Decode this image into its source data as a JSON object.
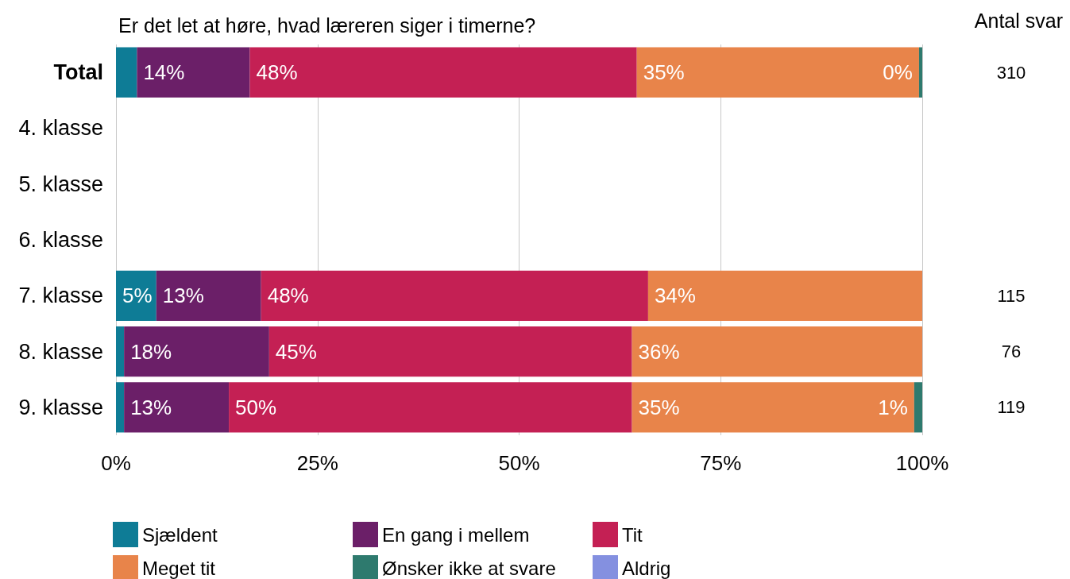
{
  "chart_data": {
    "type": "bar",
    "orientation": "horizontal",
    "stacked": true,
    "title": "Er det let at høre, hvad læreren siger i timerne?",
    "categories": [
      "Total",
      "4. klasse",
      "5. klasse",
      "6. klasse",
      "7. klasse",
      "8. klasse",
      "9. klasse"
    ],
    "series": [
      {
        "name": "Sjældent",
        "color": "#0e7c96",
        "values": [
          2.6,
          null,
          null,
          null,
          5,
          1,
          1
        ],
        "value_labels": [
          null,
          null,
          null,
          null,
          "5%",
          null,
          null
        ]
      },
      {
        "name": "En gang i mellem",
        "color": "#6b1f68",
        "values": [
          14,
          null,
          null,
          null,
          13,
          18,
          13
        ],
        "value_labels": [
          "14%",
          null,
          null,
          null,
          "13%",
          "18%",
          "13%"
        ]
      },
      {
        "name": "Tit",
        "color": "#c42054",
        "values": [
          48,
          null,
          null,
          null,
          48,
          45,
          50
        ],
        "value_labels": [
          "48%",
          null,
          null,
          null,
          "48%",
          "45%",
          "50%"
        ]
      },
      {
        "name": "Meget tit",
        "color": "#e8844a",
        "values": [
          35,
          null,
          null,
          null,
          34,
          36,
          35
        ],
        "value_labels": [
          "35%",
          null,
          null,
          null,
          "34%",
          "36%",
          "35%"
        ]
      },
      {
        "name": "Ønsker ikke at svare",
        "color": "#2e7a6e",
        "values": [
          0.4,
          null,
          null,
          null,
          null,
          null,
          1
        ],
        "value_labels": [
          "0%",
          null,
          null,
          null,
          null,
          null,
          "1%"
        ]
      },
      {
        "name": "Aldrig",
        "color": "#8490e0",
        "values": [
          null,
          null,
          null,
          null,
          null,
          null,
          null
        ]
      }
    ],
    "xlim": [
      0,
      100
    ],
    "xticks": [
      {
        "value": 0,
        "label": "0%"
      },
      {
        "value": 25,
        "label": "25%"
      },
      {
        "value": 50,
        "label": "50%"
      },
      {
        "value": 75,
        "label": "75%"
      },
      {
        "value": 100,
        "label": "100%"
      }
    ],
    "grid": "x",
    "legend": "bottom",
    "annotations": [
      "Antal svar",
      "310",
      "115",
      "76",
      "119"
    ]
  }
}
